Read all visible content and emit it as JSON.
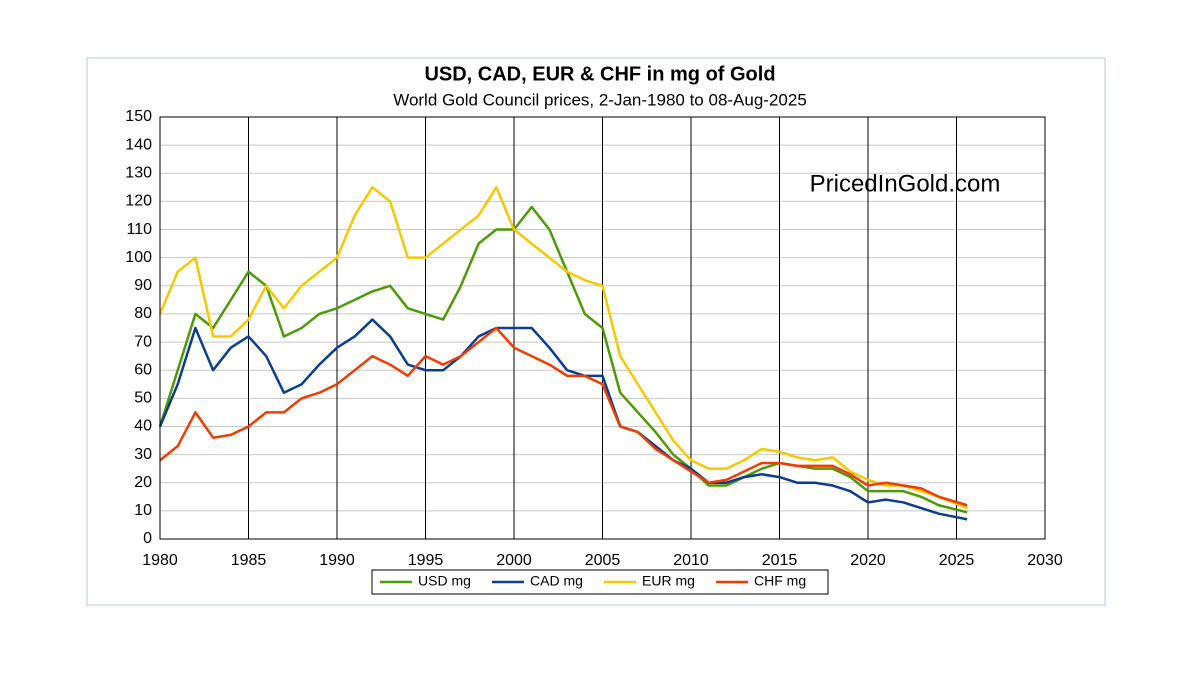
{
  "chart_data": {
    "type": "line",
    "title": "USD, CAD, EUR & CHF in mg of Gold",
    "subtitle": "World Gold Council prices, 2-Jan-1980 to 08-Aug-2025",
    "annotation": "PricedInGold.com",
    "x": [
      1980,
      1981,
      1982,
      1983,
      1984,
      1985,
      1986,
      1987,
      1988,
      1989,
      1990,
      1991,
      1992,
      1993,
      1994,
      1995,
      1996,
      1997,
      1998,
      1999,
      2000,
      2001,
      2002,
      2003,
      2004,
      2005,
      2006,
      2007,
      2008,
      2009,
      2010,
      2011,
      2012,
      2013,
      2014,
      2015,
      2016,
      2017,
      2018,
      2019,
      2020,
      2021,
      2022,
      2023,
      2024,
      2025.6
    ],
    "series": [
      {
        "name": "USD mg",
        "color": "#4e9a06",
        "values": [
          40,
          60,
          80,
          75,
          85,
          95,
          90,
          72,
          75,
          80,
          82,
          85,
          88,
          90,
          82,
          80,
          78,
          90,
          105,
          110,
          110,
          118,
          110,
          95,
          80,
          75,
          52,
          45,
          38,
          30,
          25,
          19,
          19,
          22,
          25,
          27,
          26,
          25,
          25,
          22,
          17,
          17,
          17,
          15,
          12,
          9.5
        ]
      },
      {
        "name": "CAD mg",
        "color": "#0d3d91",
        "values": [
          40,
          55,
          75,
          60,
          68,
          72,
          65,
          52,
          55,
          62,
          68,
          72,
          78,
          72,
          62,
          60,
          60,
          65,
          72,
          75,
          75,
          75,
          68,
          60,
          58,
          58,
          40,
          38,
          33,
          28,
          25,
          20,
          20,
          22,
          23,
          22,
          20,
          20,
          19,
          17,
          13,
          14,
          13,
          11,
          9,
          7
        ]
      },
      {
        "name": "EUR mg",
        "color": "#f5c800",
        "values": [
          80,
          95,
          100,
          72,
          72,
          78,
          90,
          82,
          90,
          95,
          100,
          115,
          125,
          120,
          100,
          100,
          105,
          110,
          115,
          125,
          110,
          105,
          100,
          95,
          92,
          90,
          65,
          55,
          45,
          35,
          28,
          25,
          25,
          28,
          32,
          31,
          29,
          28,
          29,
          24,
          21,
          19,
          19,
          17,
          15,
          11
        ]
      },
      {
        "name": "CHF mg",
        "color": "#f03c00",
        "values": [
          28,
          33,
          45,
          36,
          37,
          40,
          45,
          45,
          50,
          52,
          55,
          60,
          65,
          62,
          58,
          65,
          62,
          65,
          70,
          75,
          68,
          65,
          62,
          58,
          58,
          55,
          40,
          38,
          32,
          28,
          24,
          20,
          21,
          24,
          27,
          27,
          26,
          26,
          26,
          23,
          19,
          20,
          19,
          18,
          15,
          12
        ]
      }
    ],
    "xlim": [
      1980,
      2030
    ],
    "xticks": [
      1980,
      1985,
      1990,
      1995,
      2000,
      2005,
      2010,
      2015,
      2020,
      2025,
      2030
    ],
    "ylim": [
      0,
      150
    ],
    "yticks": [
      0,
      10,
      20,
      30,
      40,
      50,
      60,
      70,
      80,
      90,
      100,
      110,
      120,
      130,
      140,
      150
    ],
    "grid": true,
    "legend": "bottom"
  }
}
